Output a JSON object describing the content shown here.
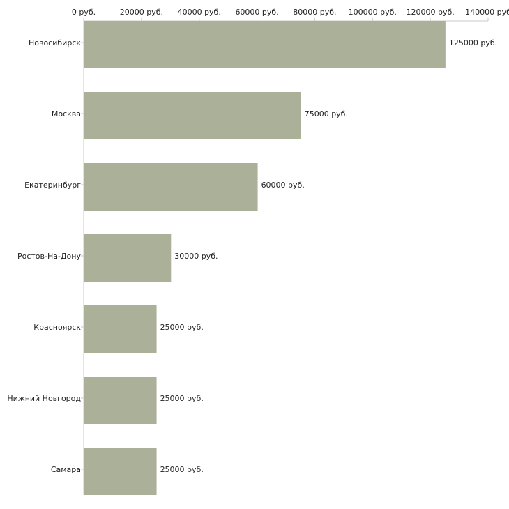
{
  "chart_data": {
    "type": "bar",
    "orientation": "horizontal",
    "title": "",
    "xlabel": "",
    "ylabel": "",
    "xlim": [
      0,
      140000
    ],
    "axis_position": "top",
    "grid": false,
    "bar_color": "#abb098",
    "axis_color": "#c8c8c8",
    "ticks": [
      {
        "value": 0,
        "label": "0 руб."
      },
      {
        "value": 20000,
        "label": "20000 руб."
      },
      {
        "value": 40000,
        "label": "40000 руб."
      },
      {
        "value": 60000,
        "label": "60000 руб."
      },
      {
        "value": 80000,
        "label": "80000 руб."
      },
      {
        "value": 100000,
        "label": "100000 руб."
      },
      {
        "value": 120000,
        "label": "120000 руб."
      },
      {
        "value": 140000,
        "label": "140000 руб"
      }
    ],
    "categories": [
      "Новосибирск",
      "Москва",
      "Екатеринбург",
      "Ростов-На-Дону",
      "Красноярск",
      "Нижний Новгород",
      "Самара"
    ],
    "values": [
      125000,
      75000,
      60000,
      30000,
      25000,
      25000,
      25000
    ],
    "value_labels": [
      "125000 руб.",
      "75000 руб.",
      "60000 руб.",
      "30000 руб.",
      "25000 руб.",
      "25000 руб.",
      "25000 руб."
    ]
  }
}
